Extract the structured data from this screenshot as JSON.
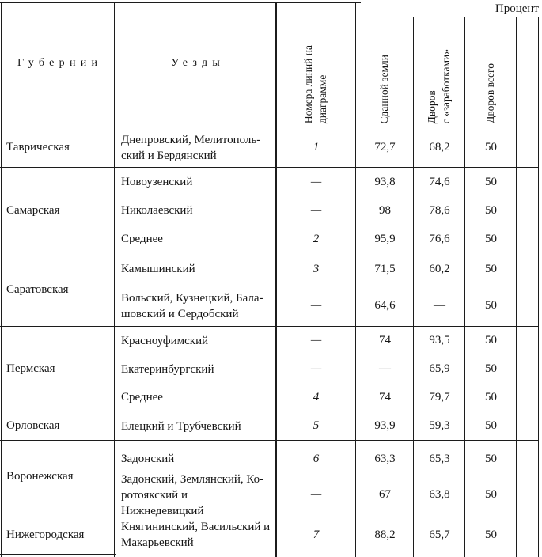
{
  "table": {
    "percent_label": "Процент",
    "columns": {
      "province": "Губернии",
      "uezd": "Уезды",
      "line_no": "Номера линий на\nдиаграмме",
      "leased_land": "Сданной земли",
      "households_earnings": "Дворов\nс «заработками»",
      "households_total": "Дворов всего"
    },
    "groups": [
      {
        "province": "Таврическая",
        "rows": [
          {
            "uezd": "Днепровский, Мелитополь-\nский и Бердянский",
            "line_no": "1",
            "leased_land": "72,7",
            "households_earnings": "68,2",
            "households_total": "50"
          }
        ]
      },
      {
        "province": "Самарская",
        "rows": [
          {
            "uezd": "Новоузенский",
            "line_no": "—",
            "leased_land": "93,8",
            "households_earnings": "74,6",
            "households_total": "50"
          },
          {
            "uezd": "Николаевский",
            "line_no": "—",
            "leased_land": "98",
            "households_earnings": "78,6",
            "households_total": "50"
          },
          {
            "uezd": "Среднее",
            "line_no": "2",
            "leased_land": "95,9",
            "households_earnings": "76,6",
            "households_total": "50"
          }
        ]
      },
      {
        "province": "Саратовская",
        "rows": [
          {
            "uezd": "Камышинский",
            "line_no": "3",
            "leased_land": "71,5",
            "households_earnings": "60,2",
            "households_total": "50"
          },
          {
            "uezd": "Вольский, Кузнецкий, Бала-\nшовский и Сердобский",
            "line_no": "—",
            "leased_land": "64,6",
            "households_earnings": "—",
            "households_total": "50"
          }
        ]
      },
      {
        "province": "Пермская",
        "rows": [
          {
            "uezd": "Красноуфимский",
            "line_no": "—",
            "leased_land": "74",
            "households_earnings": "93,5",
            "households_total": "50"
          },
          {
            "uezd": "Екатеринбургский",
            "line_no": "—",
            "leased_land": "—",
            "households_earnings": "65,9",
            "households_total": "50"
          },
          {
            "uezd": "Среднее",
            "line_no": "4",
            "leased_land": "74",
            "households_earnings": "79,7",
            "households_total": "50"
          }
        ]
      },
      {
        "province": "Орловская",
        "rows": [
          {
            "uezd": "Елецкий и Трубчевский",
            "line_no": "5",
            "leased_land": "93,9",
            "households_earnings": "59,3",
            "households_total": "50"
          }
        ]
      },
      {
        "province": "Воронежская",
        "rows": [
          {
            "uezd": "Задонский",
            "line_no": "6",
            "leased_land": "63,3",
            "households_earnings": "65,3",
            "households_total": "50"
          },
          {
            "uezd": "Задонский, Землянский, Ко-\nротоякский и Нижнедевицкий",
            "line_no": "—",
            "leased_land": "67",
            "households_earnings": "63,8",
            "households_total": "50"
          }
        ]
      },
      {
        "province": "Нижегородская",
        "rows": [
          {
            "uezd": "Княгининский, Васильский и\nМакарьевский",
            "line_no": "7",
            "leased_land": "88,2",
            "households_earnings": "65,7",
            "households_total": "50"
          }
        ]
      }
    ]
  }
}
